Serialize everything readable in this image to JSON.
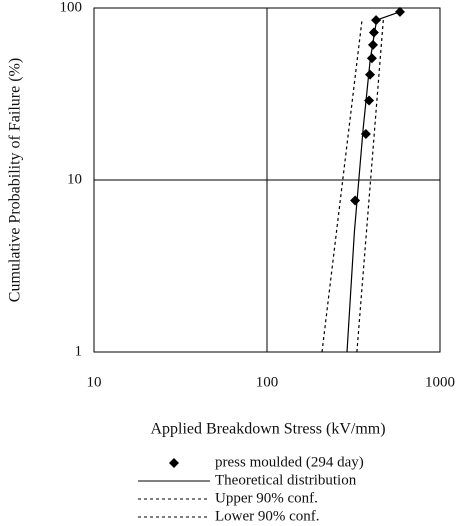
{
  "chart_data": {
    "type": "line",
    "x_label": "Applied Breakdown Stress (kV/mm)",
    "y_label": "Cumulative Probability of Failure (%)",
    "xlog": true,
    "ylog": true,
    "xlim": [
      10,
      1000
    ],
    "ylim": [
      1,
      100
    ],
    "xticks": [
      10,
      100,
      1000
    ],
    "yticks": [
      1,
      10,
      100
    ],
    "grid": true,
    "series": [
      {
        "name": "press moulded (294 day)",
        "type": "scatter",
        "color": "#000000",
        "x": [
          323,
          373,
          389,
          394,
          404,
          410,
          415,
          427,
          587
        ],
        "y": [
          7.6,
          18.5,
          29,
          41,
          51,
          61,
          72,
          85,
          95
        ]
      },
      {
        "name": "Theoretical distribution",
        "type": "line",
        "dash": false,
        "color": "#000000",
        "x": [
          290,
          320,
          360,
          395,
          430,
          587
        ],
        "y": [
          1,
          5,
          20,
          50,
          85,
          95
        ]
      },
      {
        "name": "Upper 90% conf.",
        "type": "line",
        "dash": true,
        "color": "#000000",
        "x": [
          208,
          354
        ],
        "y": [
          1,
          85
        ]
      },
      {
        "name": "Lower 90% conf.",
        "type": "line",
        "dash": true,
        "color": "#000000",
        "x": [
          331,
          470
        ],
        "y": [
          1,
          85
        ]
      }
    ]
  }
}
